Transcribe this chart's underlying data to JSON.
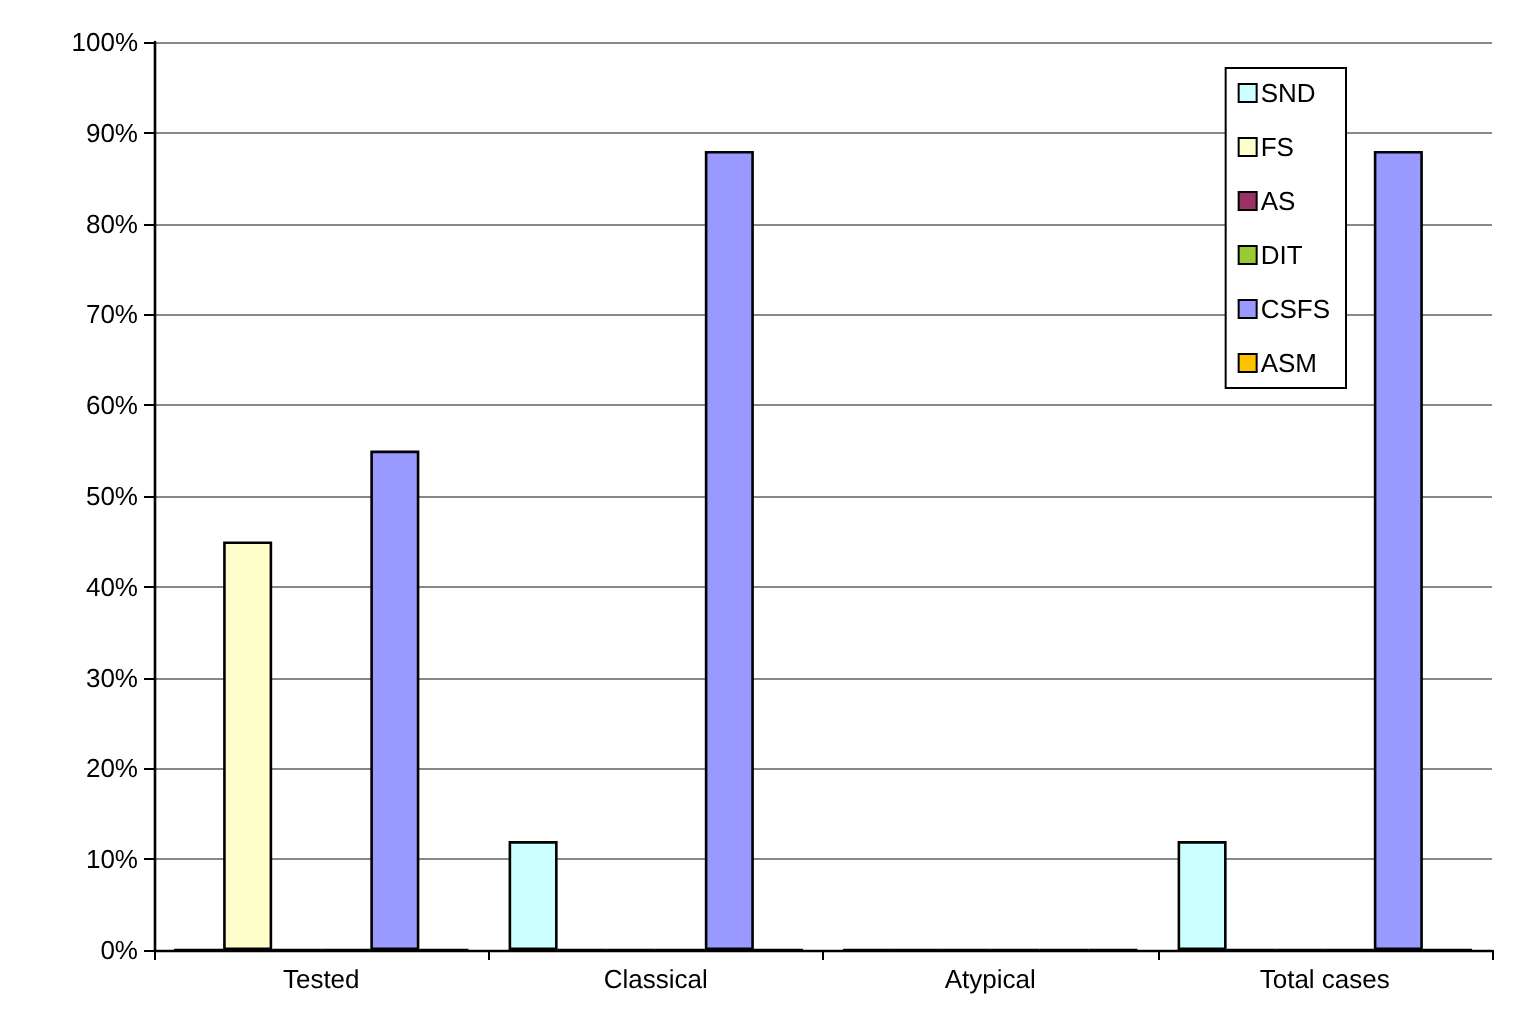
{
  "chart_data": {
    "type": "bar",
    "categories": [
      "Tested",
      "Classical",
      "Atypical",
      "Total cases"
    ],
    "series": [
      {
        "name": "SND",
        "color": "#ccffff",
        "values": [
          0,
          12,
          0,
          12
        ]
      },
      {
        "name": "FS",
        "color": "#ffffcc",
        "values": [
          45,
          0,
          0,
          0
        ]
      },
      {
        "name": "AS",
        "color": "#993366",
        "values": [
          0,
          0,
          0,
          0
        ]
      },
      {
        "name": "DIT",
        "color": "#99cc33",
        "values": [
          0,
          0,
          0,
          0
        ]
      },
      {
        "name": "CSFS",
        "color": "#9999ff",
        "values": [
          55,
          88,
          0,
          88
        ]
      },
      {
        "name": "ASM",
        "color": "#ffc000",
        "values": [
          0,
          0,
          0,
          0
        ]
      }
    ],
    "ylim": [
      0,
      100
    ],
    "yticks": [
      {
        "value": 0,
        "label": "0%"
      },
      {
        "value": 10,
        "label": "10%"
      },
      {
        "value": 20,
        "label": "20%"
      },
      {
        "value": 30,
        "label": "30%"
      },
      {
        "value": 40,
        "label": "40%"
      },
      {
        "value": 50,
        "label": "50%"
      },
      {
        "value": 60,
        "label": "60%"
      },
      {
        "value": 70,
        "label": "70%"
      },
      {
        "value": 80,
        "label": "80%"
      },
      {
        "value": 90,
        "label": "90%"
      },
      {
        "value": 100,
        "label": "100%"
      }
    ],
    "grid": "y",
    "legend": "top right"
  }
}
